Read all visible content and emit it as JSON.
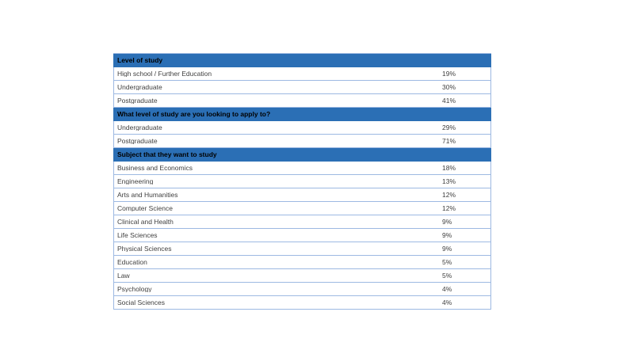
{
  "page": {
    "background_color": "#ffffff"
  },
  "table": {
    "header_bg": "#2b6fb5",
    "header_text_color": "#000000",
    "row_border_color": "#9db9e2",
    "row_text_color": "#3f3f3f",
    "sections": [
      {
        "header": "Level of study",
        "rows": [
          {
            "label": "High school / Further Education",
            "value": "19%"
          },
          {
            "label": "Undergraduate",
            "value": "30%"
          },
          {
            "label": "Postgraduate",
            "value": "41%"
          }
        ]
      },
      {
        "header": "What level of study are you looking to apply to?",
        "rows": [
          {
            "label": "Undergraduate",
            "value": "29%"
          },
          {
            "label": "Postgraduate",
            "value": "71%"
          }
        ]
      },
      {
        "header": "Subject that they want to study",
        "rows": [
          {
            "label": "Business and Economics",
            "value": "18%"
          },
          {
            "label": "Engineering",
            "value": "13%"
          },
          {
            "label": "Arts and Humanities",
            "value": "12%"
          },
          {
            "label": "Computer Science",
            "value": "12%"
          },
          {
            "label": "Clinical and Health",
            "value": "9%"
          },
          {
            "label": "Life Sciences",
            "value": "9%"
          },
          {
            "label": "Physical Sciences",
            "value": "9%"
          },
          {
            "label": "Education",
            "value": "5%"
          },
          {
            "label": "Law",
            "value": "5%"
          },
          {
            "label": "Psychology",
            "value": "4%"
          },
          {
            "label": "Social Sciences",
            "value": "4%"
          }
        ]
      }
    ]
  }
}
